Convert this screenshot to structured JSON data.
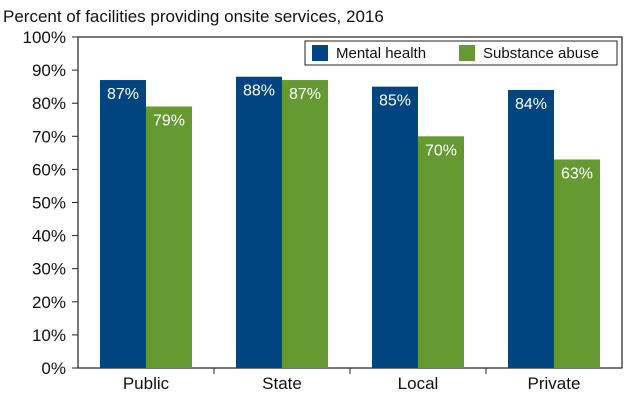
{
  "chart_data": {
    "type": "bar",
    "title": "Percent of facilities providing onsite services, 2016",
    "xlabel": "",
    "ylabel": "",
    "categories": [
      "Public",
      "State",
      "Local",
      "Private"
    ],
    "series": [
      {
        "name": "Mental health",
        "values": [
          87,
          88,
          85,
          84
        ],
        "labels": [
          "87%",
          "88%",
          "85%",
          "84%"
        ],
        "color": "#004580"
      },
      {
        "name": "Substance abuse",
        "values": [
          79,
          87,
          70,
          63
        ],
        "labels": [
          "79%",
          "87%",
          "70%",
          "63%"
        ],
        "color": "#659a33"
      }
    ],
    "ylim": [
      0,
      100
    ],
    "yticks": [
      "0%",
      "10%",
      "20%",
      "30%",
      "40%",
      "50%",
      "60%",
      "70%",
      "80%",
      "90%",
      "100%"
    ],
    "grid": false,
    "legend_position": "top-right"
  }
}
